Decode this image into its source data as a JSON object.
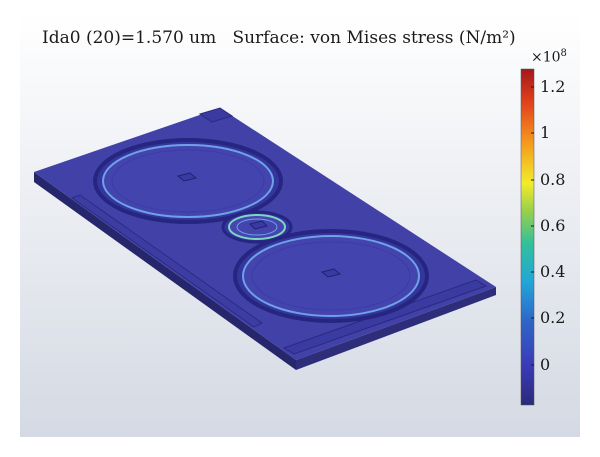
{
  "plot": {
    "title": "Ida0 (20)=1.570 um   Surface: von Mises stress (N/m²)",
    "colorbar": {
      "multiplier_base": "×10",
      "multiplier_exponent": "8",
      "ticks": [
        "1.2",
        "1",
        "0.8",
        "0.6",
        "0.4",
        "0.2",
        "0"
      ],
      "colormap": [
        "#2a2a7c",
        "#3b3bb8",
        "#2e66c8",
        "#22a7d9",
        "#32c09a",
        "#9bd04a",
        "#f2ec2a",
        "#f59a1e",
        "#e2411b",
        "#a3181b"
      ]
    }
  }
}
